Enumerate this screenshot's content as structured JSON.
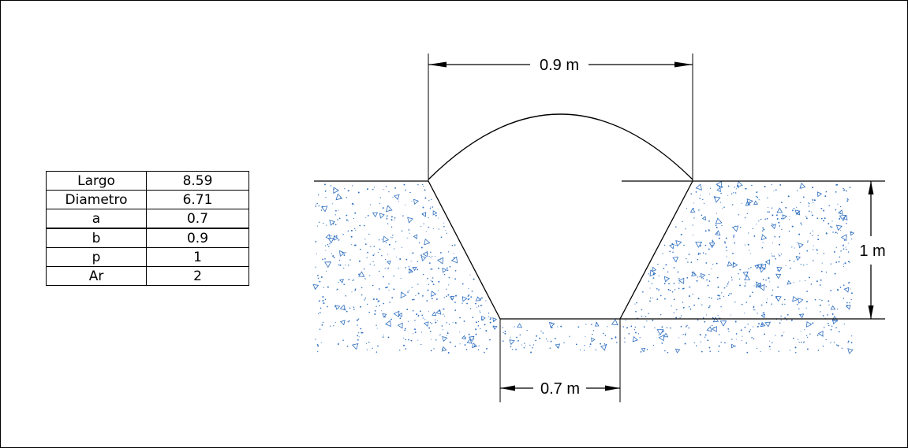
{
  "table": [
    {
      "key": "Largo",
      "value": "8.59"
    },
    {
      "key": "Diametro",
      "value": "6.71"
    },
    {
      "key": "a",
      "value": "0.7"
    },
    {
      "key": "b",
      "value": "0.9"
    },
    {
      "key": "p",
      "value": "1"
    },
    {
      "key": "Ar",
      "value": "2"
    }
  ],
  "dimensions": {
    "top_width": "0.9 m",
    "depth": "1 m",
    "bottom_width": "0.7 m"
  },
  "colors": {
    "line": "#000000",
    "soil_speckle": "#2f6fc0"
  }
}
